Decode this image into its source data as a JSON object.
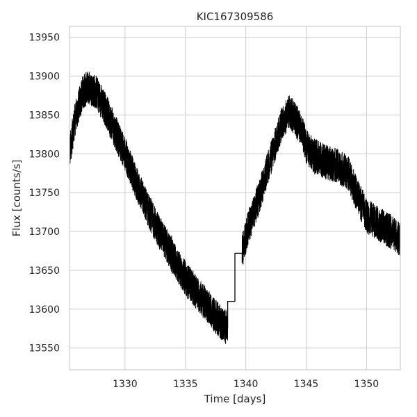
{
  "chart_data": {
    "type": "line",
    "title": "KIC167309586",
    "xlabel": "Time [days]",
    "ylabel": "Flux [counts/s]",
    "xlim": [
      1325.4,
      1352.8
    ],
    "ylim": [
      13522,
      13964
    ],
    "grid": true,
    "x_ticks": [
      1330,
      1335,
      1340,
      1345,
      1350
    ],
    "y_ticks": [
      13550,
      13600,
      13650,
      13700,
      13750,
      13800,
      13850,
      13900,
      13950
    ],
    "line_color": "#000000",
    "series": [
      {
        "trend_x": [
          1325.4,
          1325.8,
          1326.5,
          1327.0,
          1327.6,
          1328.3,
          1329.0,
          1330.0,
          1331.0,
          1332.0,
          1333.0,
          1334.0,
          1335.0,
          1336.0,
          1337.0,
          1337.8,
          1338.5
        ],
        "trend_y": [
          13800,
          13840,
          13880,
          13885,
          13880,
          13860,
          13835,
          13800,
          13760,
          13725,
          13695,
          13665,
          13640,
          13620,
          13600,
          13585,
          13575
        ],
        "noise_amplitude": 22,
        "gap_x": [
          1338.5,
          1338.5,
          1339.1,
          1339.1,
          1339.7,
          1339.7
        ],
        "gap_y": [
          13575,
          13610,
          13610,
          13672,
          13672,
          13660
        ],
        "trend2_x": [
          1339.7,
          1340.2,
          1341.0,
          1342.0,
          1343.0,
          1343.6,
          1344.5,
          1345.0,
          1345.5,
          1346.5,
          1347.5,
          1348.5,
          1349.0,
          1350.0,
          1351.0,
          1352.0,
          1352.8
        ],
        "trend2_y": [
          13675,
          13705,
          13740,
          13790,
          13840,
          13855,
          13835,
          13810,
          13800,
          13790,
          13785,
          13775,
          13755,
          13720,
          13710,
          13700,
          13690
        ]
      }
    ]
  }
}
